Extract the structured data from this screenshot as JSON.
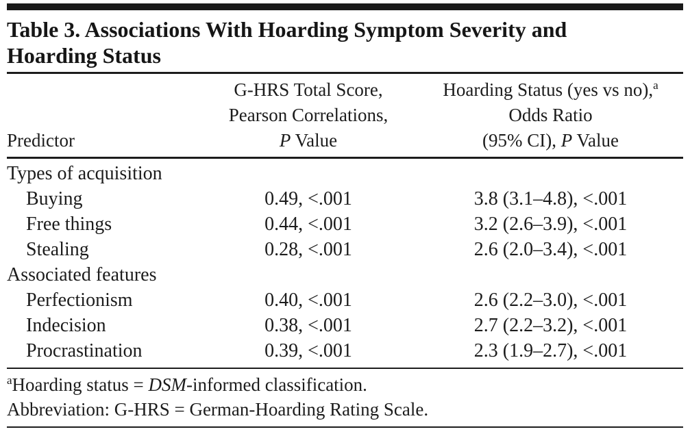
{
  "title": "Table 3. Associations With Hoarding Symptom Severity and Hoarding Status",
  "columns": {
    "predictor": "Predictor",
    "ghrs": {
      "line1": "G-HRS Total Score,",
      "line2": "Pearson Correlations,",
      "line3_italic": "P",
      "line3_rest": " Value"
    },
    "hoarding_status": {
      "line1": "Hoarding Status (yes vs no),",
      "line1_sup": "a",
      "line2": "Odds Ratio",
      "line3_pre": "(95% CI), ",
      "line3_italic": "P",
      "line3_rest": " Value"
    }
  },
  "sections": [
    {
      "header": "Types of acquisition",
      "rows": [
        {
          "label": "Buying",
          "corr": "0.49, <.001",
          "or": "3.8 (3.1–4.8), <.001"
        },
        {
          "label": "Free things",
          "corr": "0.44, <.001",
          "or": "3.2 (2.6–3.9), <.001"
        },
        {
          "label": "Stealing",
          "corr": "0.28, <.001",
          "or": "2.6 (2.0–3.4), <.001"
        }
      ]
    },
    {
      "header": "Associated features",
      "rows": [
        {
          "label": "Perfectionism",
          "corr": "0.40, <.001",
          "or": "2.6 (2.2–3.0), <.001"
        },
        {
          "label": "Indecision",
          "corr": "0.38, <.001",
          "or": "2.7 (2.2–3.2), <.001"
        },
        {
          "label": "Procrastination",
          "corr": "0.39, <.001",
          "or": "2.3 (1.9–2.7), <.001"
        }
      ]
    }
  ],
  "footnotes": {
    "note_a": {
      "sup": "a",
      "pre": "Hoarding status = ",
      "italic": "DSM",
      "post": "-informed classification."
    },
    "abbreviation": "Abbreviation: G-HRS = German-Hoarding Rating Scale."
  }
}
